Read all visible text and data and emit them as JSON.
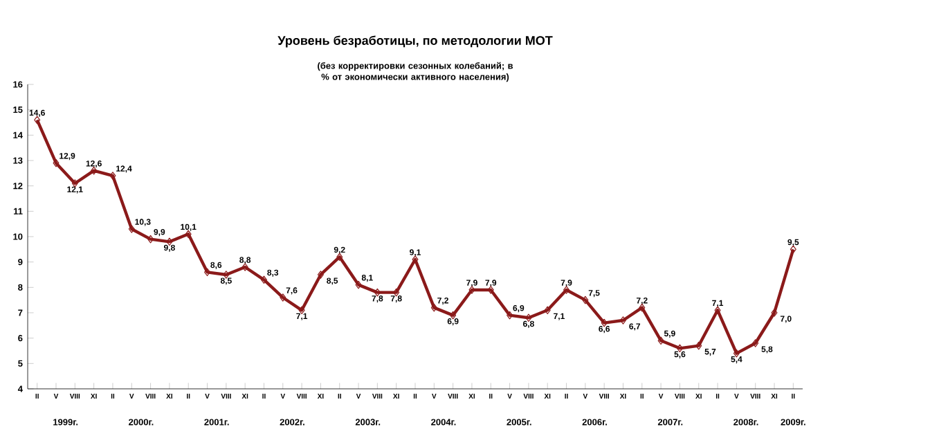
{
  "chart_data": {
    "type": "line",
    "title": "Уровень безработицы, по методологии МОТ",
    "subtitle": "(без корректировки сезонных колебаний; в % от экономически активного населения)",
    "categories": [
      "II",
      "V",
      "VIII",
      "XI",
      "II",
      "V",
      "VIII",
      "XI",
      "II",
      "V",
      "VIII",
      "XI",
      "II",
      "V",
      "VIII",
      "XI",
      "II",
      "V",
      "VIII",
      "XI",
      "II",
      "V",
      "VIII",
      "XI",
      "II",
      "V",
      "VIII",
      "XI",
      "II",
      "V",
      "VIII",
      "XI",
      "II",
      "V",
      "VIII",
      "XI",
      "II",
      "V",
      "VIII",
      "XI",
      "II"
    ],
    "series": [
      {
        "color": "#8b1a1a",
        "values": [
          14.6,
          12.9,
          12.1,
          12.6,
          12.4,
          10.3,
          9.9,
          9.8,
          10.1,
          8.6,
          8.5,
          8.8,
          8.3,
          7.6,
          7.1,
          8.5,
          9.2,
          8.1,
          7.8,
          7.8,
          9.1,
          7.2,
          6.9,
          7.9,
          7.9,
          6.9,
          6.8,
          7.1,
          7.9,
          7.5,
          6.6,
          6.7,
          7.2,
          5.9,
          5.6,
          5.7,
          7.1,
          5.4,
          5.8,
          7.0,
          9.5
        ],
        "value_labels": [
          "14,6",
          "12,9",
          "12,1",
          "12,6",
          "12,4",
          "10,3",
          "9,9",
          "9,8",
          "10,1",
          "8,6",
          "8,5",
          "8,8",
          "8,3",
          "7,6",
          "7,1",
          "8,5",
          "9,2",
          "8,1",
          "7,8",
          "7,8",
          "9,1",
          "7,2",
          "6,9",
          "7,9",
          "7,9",
          "6,9",
          "6,8",
          "7,1",
          "7,9",
          "7,5",
          "6,6",
          "6,7",
          "7,2",
          "5,9",
          "5,6",
          "5,7",
          "7,1",
          "5,4",
          "5,8",
          "7,0",
          "9,5"
        ]
      }
    ],
    "annotations": [
      "1999г.",
      "2000г.",
      "2001г.",
      "2002г.",
      "2003г.",
      "2004г.",
      "2005г.",
      "2006г.",
      "2007г.",
      "2008г.",
      "2009г."
    ],
    "ylim": [
      4,
      16
    ],
    "yticks": [
      4,
      5,
      6,
      7,
      8,
      9,
      10,
      11,
      12,
      13,
      14,
      15,
      16
    ],
    "marker": "diamond",
    "line_style": "solid",
    "grid": false,
    "legend": false
  }
}
